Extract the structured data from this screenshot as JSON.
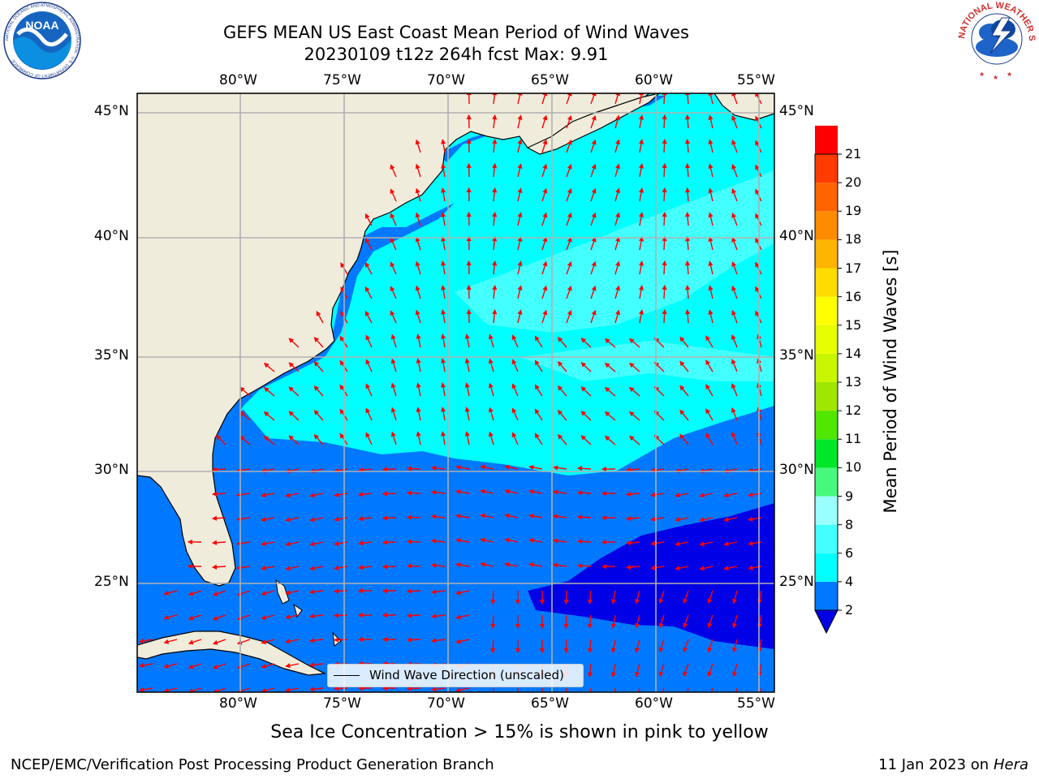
{
  "header": {
    "title_line1": "GEFS MEAN US East Coast Mean Period of Wind Waves",
    "title_line2": "20230109 t12z 264h fcst   Max: 9.91"
  },
  "logos": {
    "noaa_text": "NOAA",
    "noaa_ring": "NATIONAL OCEANIC AND ATMOSPHERIC ADMINISTRATION · U.S. DEPARTMENT OF COMMERCE",
    "nws_ring": "NATIONAL WEATHER SERVICE"
  },
  "map": {
    "lon_labels": [
      "80°W",
      "75°W",
      "70°W",
      "65°W",
      "60°W",
      "55°W"
    ],
    "lat_labels": [
      "45°N",
      "40°N",
      "35°N",
      "30°N",
      "25°N"
    ],
    "legend_label": "Wind Wave Direction (unscaled)",
    "sea_ice_note": "Sea Ice Concentration > 15% is shown in pink to yellow"
  },
  "colorbar": {
    "label": "Mean Period of Wind Waves [s]",
    "ticks": [
      "21",
      "20",
      "19",
      "18",
      "17",
      "16",
      "15",
      "14",
      "13",
      "12",
      "11",
      "10",
      "9",
      "8",
      "6",
      "4",
      "2"
    ],
    "colors": [
      "#0000e6",
      "#0078ff",
      "#00ffff",
      "#44ffff",
      "#99ffff",
      "#46f97c",
      "#00e628",
      "#50e600",
      "#a0e600",
      "#c8f500",
      "#e6ff00",
      "#ffff00",
      "#ffdc00",
      "#ffb400",
      "#ff8c00",
      "#ff6400",
      "#ff3c00",
      "#ff0000"
    ]
  },
  "footer": {
    "left": "NCEP/EMC/Verification Post Processing Product Generation Branch",
    "right_date": "11 Jan 2023 on ",
    "right_host": "Hera"
  }
}
